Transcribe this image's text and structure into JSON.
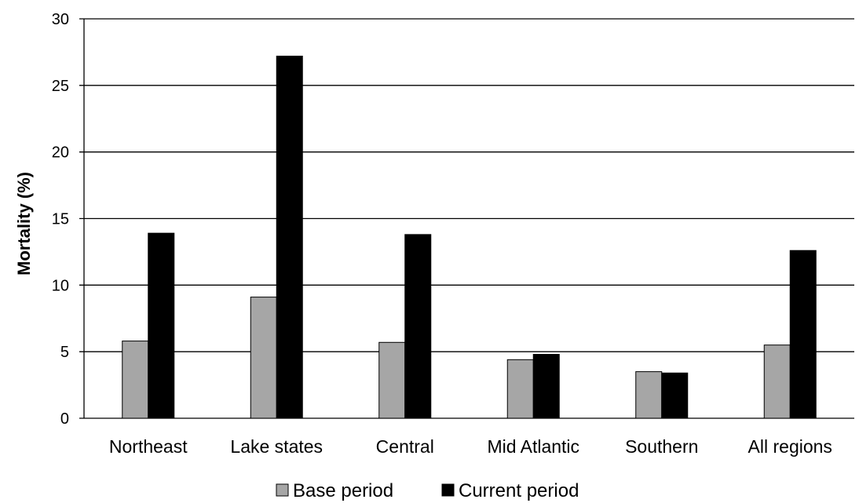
{
  "chart_data": {
    "type": "bar",
    "title": "",
    "xlabel": "",
    "ylabel": "Mortality (%)",
    "ylim": [
      0,
      30
    ],
    "yticks": [
      0,
      5,
      10,
      15,
      20,
      25,
      30
    ],
    "grid": "horizontal",
    "legend_position": "bottom",
    "categories": [
      "Northeast",
      "Lake states",
      "Central",
      "Mid Atlantic",
      "Southern",
      "All regions"
    ],
    "series": [
      {
        "name": "Base period",
        "color": "#a6a6a6",
        "values": [
          5.8,
          9.1,
          5.7,
          4.4,
          3.5,
          5.5
        ]
      },
      {
        "name": "Current period",
        "color": "#000000",
        "values": [
          13.9,
          27.2,
          13.8,
          4.8,
          3.4,
          12.6
        ]
      }
    ]
  }
}
